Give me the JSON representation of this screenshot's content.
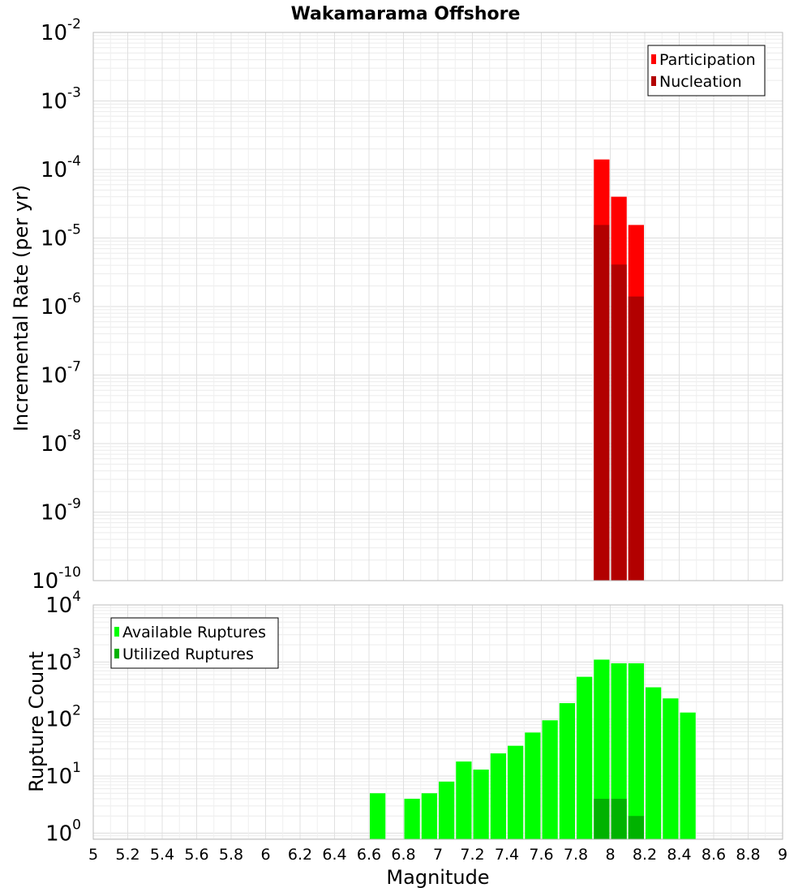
{
  "chart_data": [
    {
      "type": "bar",
      "title": "Wakamarama Offshore",
      "xlabel": "",
      "ylabel": "Incremental Rate (per yr)",
      "yscale": "log",
      "ylim": [
        1e-10,
        0.01
      ],
      "xlim": [
        5,
        9
      ],
      "yticks": [
        {
          "base": "10",
          "exp": "-10"
        },
        {
          "base": "10",
          "exp": "-9"
        },
        {
          "base": "10",
          "exp": "-8"
        },
        {
          "base": "10",
          "exp": "-7"
        },
        {
          "base": "10",
          "exp": "-6"
        },
        {
          "base": "10",
          "exp": "-5"
        },
        {
          "base": "10",
          "exp": "-4"
        },
        {
          "base": "10",
          "exp": "-3"
        },
        {
          "base": "10",
          "exp": "-2"
        }
      ],
      "grid": true,
      "legend_position": "top-right",
      "x": [
        7.95,
        8.05,
        8.15
      ],
      "series": [
        {
          "name": "Participation",
          "color": "#ff0000",
          "values": [
            0.00014,
            4e-05,
            1.55e-05
          ]
        },
        {
          "name": "Nucleation",
          "color": "#b20000",
          "values": [
            1.55e-05,
            4.1e-06,
            1.4e-06
          ]
        }
      ]
    },
    {
      "type": "bar",
      "title": "",
      "xlabel": "Magnitude",
      "ylabel": "Rupture Count",
      "yscale": "log",
      "ylim": [
        0.78,
        10000
      ],
      "xlim": [
        5,
        9
      ],
      "yticks": [
        {
          "base": "10",
          "exp": "0",
          "value": 1
        },
        {
          "base": "10",
          "exp": "1",
          "value": 10
        },
        {
          "base": "10",
          "exp": "2",
          "value": 100
        },
        {
          "base": "10",
          "exp": "3",
          "value": 1000
        },
        {
          "base": "10",
          "exp": "4",
          "value": 10000
        }
      ],
      "xticks": [
        "5",
        "5.2",
        "5.4",
        "5.6",
        "5.8",
        "6",
        "6.2",
        "6.4",
        "6.6",
        "6.8",
        "7",
        "7.2",
        "7.4",
        "7.6",
        "7.8",
        "8",
        "8.2",
        "8.4",
        "8.6",
        "8.8",
        "9"
      ],
      "grid": true,
      "legend_position": "top-left",
      "x": [
        6.65,
        6.85,
        6.95,
        7.05,
        7.15,
        7.25,
        7.35,
        7.45,
        7.55,
        7.65,
        7.75,
        7.85,
        7.95,
        8.05,
        8.15,
        8.25,
        8.35,
        8.45
      ],
      "series": [
        {
          "name": "Available Ruptures",
          "color": "#00ff00",
          "values": [
            5,
            4,
            5,
            8,
            18,
            13,
            25,
            34,
            58,
            95,
            190,
            550,
            1100,
            950,
            950,
            360,
            230,
            130
          ]
        },
        {
          "name": "Utilized Ruptures",
          "color": "#00b200",
          "values": [
            0,
            0,
            0,
            0,
            0,
            0,
            0,
            0,
            0,
            0,
            0,
            0,
            4,
            4,
            2,
            0,
            0,
            0
          ]
        }
      ]
    }
  ]
}
